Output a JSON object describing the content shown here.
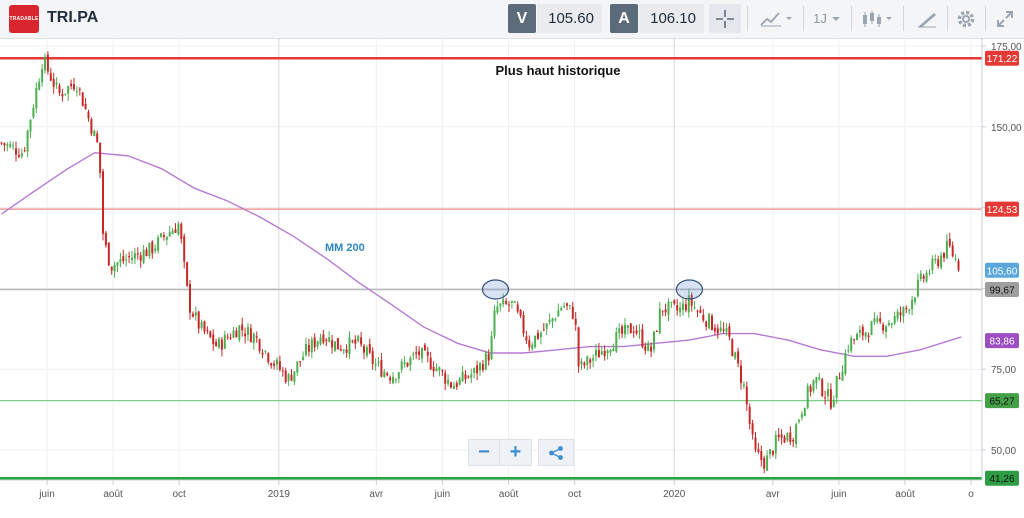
{
  "toolbar": {
    "logo_text": "TRADABLE",
    "symbol": "TRI.PA",
    "sell_label": "V",
    "sell_price": "105.60",
    "buy_label": "A",
    "buy_price": "106.10",
    "interval_label": "1J",
    "icons": [
      "crosshair-icon",
      "chart-type-icon",
      "interval-dropdown",
      "candles-icon",
      "drawing-icon",
      "gear-icon",
      "fullscreen-icon"
    ]
  },
  "zoom": {
    "minus": "−",
    "plus": "+",
    "share_icon": "share-icon"
  },
  "colors": {
    "candle_up": "#4caf50",
    "candle_down": "#c62828",
    "ma": "#b57bd4",
    "ath_line": "#e53935",
    "resistance": "#ef8a80",
    "pivot": "#b9b9b9",
    "support": "#7ccf86",
    "low_line": "#26a641",
    "accent": "#3f8fd0"
  },
  "chart_data": {
    "type": "candlestick",
    "title": "Plus haut historique",
    "annotation_ma": "MM 200",
    "y_axis": {
      "range": [
        39,
        178
      ],
      "ticks": [
        50,
        75,
        100,
        125,
        150,
        175
      ],
      "tick_labels": [
        "50,00",
        "75,00",
        "",
        "",
        "150,00",
        "175,00"
      ],
      "position": "right"
    },
    "x_axis": {
      "tick_labels": [
        "juin",
        "août",
        "oct",
        "2019",
        "avr",
        "juin",
        "août",
        "oct",
        "2020",
        "avr",
        "juin",
        "août",
        "o"
      ]
    },
    "price_points": [
      [
        "2018-04-20",
        145
      ],
      [
        "2018-05-10",
        142
      ],
      [
        "2018-05-28",
        171
      ],
      [
        "2018-06-12",
        160
      ],
      [
        "2018-06-28",
        164
      ],
      [
        "2018-07-10",
        152
      ],
      [
        "2018-07-19",
        143
      ],
      [
        "2018-07-23",
        115
      ],
      [
        "2018-07-30",
        107
      ],
      [
        "2018-08-20",
        110
      ],
      [
        "2018-09-05",
        112
      ],
      [
        "2018-09-20",
        117
      ],
      [
        "2018-10-01",
        120
      ],
      [
        "2018-10-05",
        108
      ],
      [
        "2018-10-10",
        95
      ],
      [
        "2018-10-20",
        88
      ],
      [
        "2018-11-05",
        82
      ],
      [
        "2018-11-25",
        88
      ],
      [
        "2018-12-10",
        85
      ],
      [
        "2018-12-25",
        78
      ],
      [
        "2019-01-10",
        72
      ],
      [
        "2019-01-25",
        80
      ],
      [
        "2019-02-10",
        86
      ],
      [
        "2019-02-25",
        82
      ],
      [
        "2019-03-15",
        83
      ],
      [
        "2019-04-01",
        76
      ],
      [
        "2019-04-15",
        73
      ],
      [
        "2019-05-10",
        80
      ],
      [
        "2019-05-25",
        76
      ],
      [
        "2019-06-10",
        70
      ],
      [
        "2019-07-01",
        74
      ],
      [
        "2019-07-15",
        80
      ],
      [
        "2019-07-20",
        94
      ],
      [
        "2019-08-05",
        95
      ],
      [
        "2019-08-20",
        83
      ],
      [
        "2019-09-05",
        88
      ],
      [
        "2019-09-20",
        95
      ],
      [
        "2019-10-01",
        92
      ],
      [
        "2019-10-05",
        75
      ],
      [
        "2019-10-20",
        79
      ],
      [
        "2019-11-10",
        85
      ],
      [
        "2019-11-25",
        88
      ],
      [
        "2019-12-10",
        80
      ],
      [
        "2019-12-20",
        94
      ],
      [
        "2020-01-05",
        93
      ],
      [
        "2020-01-15",
        96
      ],
      [
        "2020-01-25",
        92
      ],
      [
        "2020-02-05",
        89
      ],
      [
        "2020-02-20",
        85
      ],
      [
        "2020-03-05",
        70
      ],
      [
        "2020-03-15",
        49
      ],
      [
        "2020-03-25",
        46
      ],
      [
        "2020-04-05",
        53
      ],
      [
        "2020-04-20",
        55
      ],
      [
        "2020-05-01",
        66
      ],
      [
        "2020-05-10",
        72
      ],
      [
        "2020-05-25",
        65
      ],
      [
        "2020-06-10",
        83
      ],
      [
        "2020-07-01",
        88
      ],
      [
        "2020-07-20",
        90
      ],
      [
        "2020-08-01",
        93
      ],
      [
        "2020-08-15",
        102
      ],
      [
        "2020-09-01",
        109
      ],
      [
        "2020-09-10",
        113
      ],
      [
        "2020-09-20",
        107
      ]
    ],
    "moving_average": {
      "name": "MM 200",
      "points": [
        [
          "2018-04-20",
          123
        ],
        [
          "2018-05-20",
          130
        ],
        [
          "2018-06-20",
          137
        ],
        [
          "2018-07-15",
          142
        ],
        [
          "2018-08-15",
          141
        ],
        [
          "2018-09-15",
          137
        ],
        [
          "2018-10-15",
          131
        ],
        [
          "2018-11-15",
          127
        ],
        [
          "2018-12-15",
          122
        ],
        [
          "2019-01-15",
          116
        ],
        [
          "2019-02-15",
          109
        ],
        [
          "2019-03-15",
          102
        ],
        [
          "2019-04-15",
          95
        ],
        [
          "2019-05-15",
          88
        ],
        [
          "2019-06-15",
          83
        ],
        [
          "2019-07-15",
          80
        ],
        [
          "2019-08-15",
          80
        ],
        [
          "2019-09-15",
          81
        ],
        [
          "2019-10-15",
          82
        ],
        [
          "2019-11-15",
          82
        ],
        [
          "2019-12-15",
          83
        ],
        [
          "2020-01-15",
          84
        ],
        [
          "2020-02-15",
          86
        ],
        [
          "2020-03-15",
          86
        ],
        [
          "2020-04-15",
          84
        ],
        [
          "2020-05-15",
          81
        ],
        [
          "2020-06-15",
          79
        ],
        [
          "2020-07-15",
          79
        ],
        [
          "2020-08-15",
          81
        ],
        [
          "2020-09-22",
          85
        ]
      ]
    },
    "horizontal_lines": [
      {
        "value": 171.22,
        "label": "171,22",
        "kind": "ath"
      },
      {
        "value": 124.53,
        "label": "124,53",
        "kind": "resistance"
      },
      {
        "value": 99.67,
        "label": "99,67",
        "kind": "pivot"
      },
      {
        "value": 65.27,
        "label": "65,27",
        "kind": "support"
      },
      {
        "value": 41.26,
        "label": "41,26",
        "kind": "low"
      }
    ],
    "price_badges": [
      {
        "value": 105.6,
        "label": "105,60",
        "kind": "last"
      },
      {
        "value": 83.86,
        "label": "83,86",
        "kind": "ma"
      }
    ],
    "circled_points": [
      {
        "date": "2019-07-20",
        "value": 99.67
      },
      {
        "date": "2020-01-15",
        "value": 99.67
      }
    ]
  }
}
